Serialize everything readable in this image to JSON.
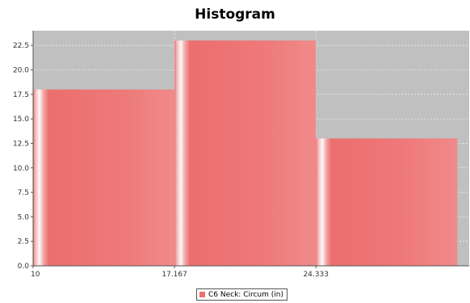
{
  "chart_data": {
    "type": "bar",
    "title": "Histogram",
    "xlabel": "",
    "ylabel": "",
    "bins": [
      {
        "start": 10,
        "end": 17.167,
        "count": 18
      },
      {
        "start": 17.167,
        "end": 24.333,
        "count": 23
      },
      {
        "start": 24.333,
        "end": 31.5,
        "count": 13
      }
    ],
    "x_tick_labels": [
      "10",
      "17.167",
      "24.333"
    ],
    "y_tick_labels": [
      "0.0",
      "2.5",
      "5.0",
      "7.5",
      "10.0",
      "12.5",
      "15.0",
      "17.5",
      "20.0",
      "22.5"
    ],
    "ylim": [
      0,
      24.0
    ],
    "xlim": [
      10,
      32.1
    ],
    "grid": true,
    "legend_position": "bottom",
    "series": [
      {
        "name": "C6  Neck: Circum (in)",
        "color": "#ee7070"
      }
    ],
    "colors": {
      "plot_background": "#c0c0c0",
      "bar": "#ee7070"
    }
  }
}
